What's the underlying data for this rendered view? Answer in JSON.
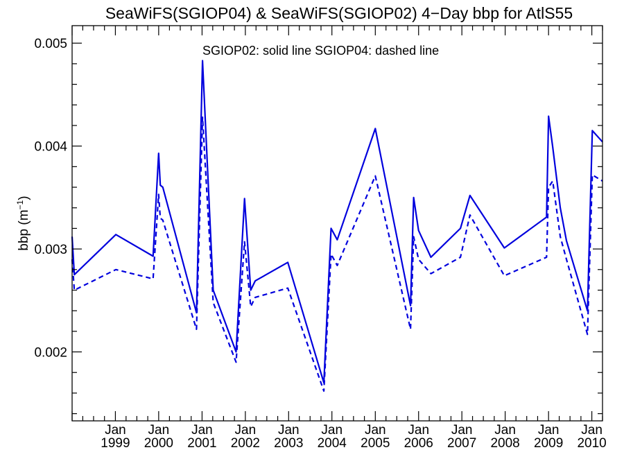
{
  "chart_data": {
    "type": "line",
    "title": "SeaWiFS(SGIOP04) & SeaWiFS(SGIOP02) 4−Day bbp for AtlS55",
    "annotation": "SGIOP02: solid line   SGIOP04: dashed line",
    "ylabel": "bbp (m",
    "ylabel_sup": "−1",
    "ylabel_close": ")",
    "xlim": [
      "1998-01-01",
      "2010-04-01"
    ],
    "ylim": [
      0.00133,
      0.00517
    ],
    "yticks": [
      {
        "value": 0.002,
        "label": "0.002"
      },
      {
        "value": 0.003,
        "label": "0.003"
      },
      {
        "value": 0.004,
        "label": "0.004"
      },
      {
        "value": 0.005,
        "label": "0.005"
      }
    ],
    "xticks": [
      {
        "date": "1999-01-01",
        "month": "Jan",
        "year": "1999"
      },
      {
        "date": "2000-01-01",
        "month": "Jan",
        "year": "2000"
      },
      {
        "date": "2001-01-01",
        "month": "Jan",
        "year": "2001"
      },
      {
        "date": "2002-01-01",
        "month": "Jan",
        "year": "2002"
      },
      {
        "date": "2003-01-01",
        "month": "Jan",
        "year": "2003"
      },
      {
        "date": "2004-01-01",
        "month": "Jan",
        "year": "2004"
      },
      {
        "date": "2005-01-01",
        "month": "Jan",
        "year": "2005"
      },
      {
        "date": "2006-01-01",
        "month": "Jan",
        "year": "2006"
      },
      {
        "date": "2007-01-01",
        "month": "Jan",
        "year": "2007"
      },
      {
        "date": "2008-01-01",
        "month": "Jan",
        "year": "2008"
      },
      {
        "date": "2009-01-01",
        "month": "Jan",
        "year": "2009"
      },
      {
        "date": "2010-01-01",
        "month": "Jan",
        "year": "2010"
      }
    ],
    "series": [
      {
        "name": "SGIOP02",
        "style": "solid",
        "color": "#0000dd",
        "points": [
          [
            "1998-01-01",
            0.00312
          ],
          [
            "1998-01-20",
            0.00275
          ],
          [
            "1999-01-05",
            0.00314
          ],
          [
            "1999-11-15",
            0.00293
          ],
          [
            "2000-01-01",
            0.00393
          ],
          [
            "2000-01-15",
            0.00362
          ],
          [
            "2000-02-05",
            0.0036
          ],
          [
            "2000-11-15",
            0.00238
          ],
          [
            "2001-01-05",
            0.00483
          ],
          [
            "2001-04-05",
            0.0026
          ],
          [
            "2001-10-15",
            0.002
          ],
          [
            "2001-12-25",
            0.00349
          ],
          [
            "2002-02-15",
            0.0026
          ],
          [
            "2002-03-25",
            0.00269
          ],
          [
            "2002-12-25",
            0.00287
          ],
          [
            "2003-10-25",
            0.0017
          ],
          [
            "2003-12-25",
            0.0032
          ],
          [
            "2004-02-15",
            0.00309
          ],
          [
            "2005-01-01",
            0.00417
          ],
          [
            "2005-10-25",
            0.00245
          ],
          [
            "2005-11-20",
            0.0035
          ],
          [
            "2006-01-01",
            0.00318
          ],
          [
            "2006-04-15",
            0.00292
          ],
          [
            "2006-12-20",
            0.0032
          ],
          [
            "2007-03-10",
            0.00352
          ],
          [
            "2007-12-25",
            0.00301
          ],
          [
            "2008-12-15",
            0.00331
          ],
          [
            "2009-01-01",
            0.00429
          ],
          [
            "2009-02-05",
            0.00399
          ],
          [
            "2009-04-10",
            0.0034
          ],
          [
            "2009-06-01",
            0.00308
          ],
          [
            "2009-11-25",
            0.0024
          ],
          [
            "2010-01-05",
            0.00415
          ],
          [
            "2010-04-01",
            0.00404
          ]
        ]
      },
      {
        "name": "SGIOP04",
        "style": "dashed",
        "color": "#0000dd",
        "points": [
          [
            "1998-01-01",
            0.0029
          ],
          [
            "1998-01-20",
            0.0026
          ],
          [
            "1999-01-05",
            0.0028
          ],
          [
            "1999-11-15",
            0.00271
          ],
          [
            "2000-01-01",
            0.00353
          ],
          [
            "2000-01-15",
            0.0033
          ],
          [
            "2000-02-05",
            0.00328
          ],
          [
            "2000-11-15",
            0.00222
          ],
          [
            "2001-01-05",
            0.00428
          ],
          [
            "2001-04-05",
            0.00248
          ],
          [
            "2001-10-15",
            0.0019
          ],
          [
            "2001-12-25",
            0.00307
          ],
          [
            "2002-02-15",
            0.00244
          ],
          [
            "2002-03-25",
            0.00253
          ],
          [
            "2002-12-25",
            0.00262
          ],
          [
            "2003-10-25",
            0.00162
          ],
          [
            "2003-12-25",
            0.00295
          ],
          [
            "2004-02-15",
            0.00284
          ],
          [
            "2005-01-01",
            0.00371
          ],
          [
            "2005-10-25",
            0.00222
          ],
          [
            "2005-11-20",
            0.00312
          ],
          [
            "2006-01-01",
            0.0029
          ],
          [
            "2006-04-15",
            0.00276
          ],
          [
            "2006-12-20",
            0.00292
          ],
          [
            "2007-03-10",
            0.00333
          ],
          [
            "2007-12-25",
            0.00274
          ],
          [
            "2008-12-15",
            0.00292
          ],
          [
            "2009-01-01",
            0.0036
          ],
          [
            "2009-02-05",
            0.00366
          ],
          [
            "2009-04-10",
            0.00312
          ],
          [
            "2009-06-01",
            0.0029
          ],
          [
            "2009-11-25",
            0.00217
          ],
          [
            "2010-01-05",
            0.00372
          ],
          [
            "2010-04-01",
            0.00366
          ]
        ]
      }
    ],
    "grid": false,
    "legend": "none"
  }
}
